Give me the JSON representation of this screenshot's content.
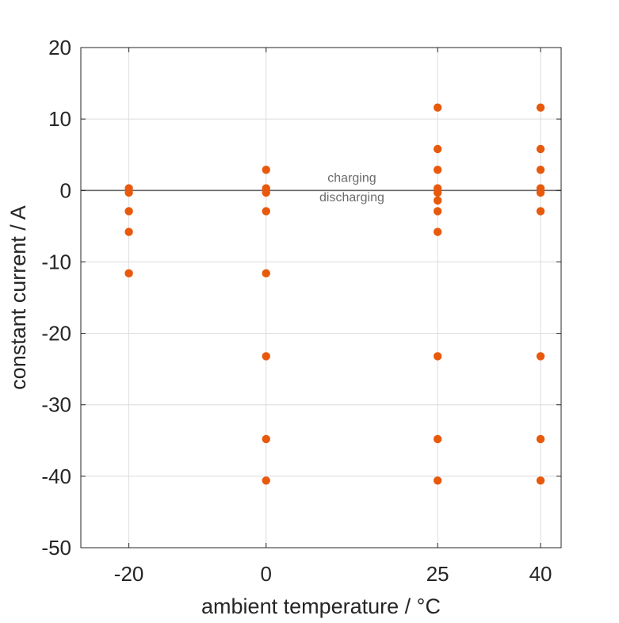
{
  "chart_data": {
    "type": "scatter",
    "title": "",
    "xlabel": "ambient temperature / °C",
    "ylabel": "constant current / A",
    "x_ticks": [
      -20,
      0,
      25,
      40
    ],
    "y_ticks": [
      20,
      10,
      0,
      -10,
      -20,
      -30,
      -40,
      -50
    ],
    "xlim": [
      -27,
      43
    ],
    "ylim": [
      -50,
      20
    ],
    "grid": true,
    "marker_color": "#E8590C",
    "reference_line": {
      "y": 0,
      "color": "#666666"
    },
    "annotations": [
      {
        "text": "charging",
        "x": 12.5,
        "y": 1.2
      },
      {
        "text": "discharging",
        "x": 12.5,
        "y": -1.5
      }
    ],
    "series": [
      {
        "points": [
          {
            "x": -20,
            "y": 0.3
          },
          {
            "x": -20,
            "y": -0.3
          },
          {
            "x": -20,
            "y": -2.9
          },
          {
            "x": -20,
            "y": -5.8
          },
          {
            "x": -20,
            "y": -11.6
          },
          {
            "x": 0,
            "y": 2.9
          },
          {
            "x": 0,
            "y": 0.3
          },
          {
            "x": 0,
            "y": -0.3
          },
          {
            "x": 0,
            "y": -2.9
          },
          {
            "x": 0,
            "y": -11.6
          },
          {
            "x": 0,
            "y": -23.2
          },
          {
            "x": 0,
            "y": -34.8
          },
          {
            "x": 0,
            "y": -40.6
          },
          {
            "x": 25,
            "y": 11.6
          },
          {
            "x": 25,
            "y": 5.8
          },
          {
            "x": 25,
            "y": 2.9
          },
          {
            "x": 25,
            "y": 0.3
          },
          {
            "x": 25,
            "y": -0.3
          },
          {
            "x": 25,
            "y": -1.4
          },
          {
            "x": 25,
            "y": -2.9
          },
          {
            "x": 25,
            "y": -5.8
          },
          {
            "x": 25,
            "y": -23.2
          },
          {
            "x": 25,
            "y": -34.8
          },
          {
            "x": 25,
            "y": -40.6
          },
          {
            "x": 40,
            "y": 11.6
          },
          {
            "x": 40,
            "y": 5.8
          },
          {
            "x": 40,
            "y": 2.9
          },
          {
            "x": 40,
            "y": 0.3
          },
          {
            "x": 40,
            "y": -0.3
          },
          {
            "x": 40,
            "y": -2.9
          },
          {
            "x": 40,
            "y": -23.2
          },
          {
            "x": 40,
            "y": -34.8
          },
          {
            "x": 40,
            "y": -40.6
          }
        ]
      }
    ]
  }
}
